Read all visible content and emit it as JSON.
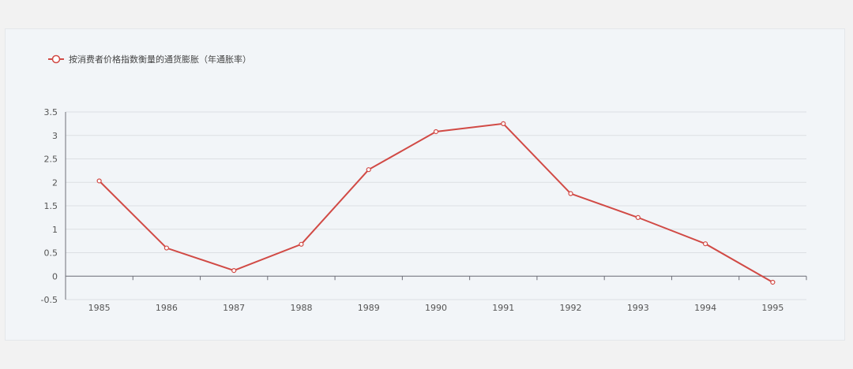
{
  "chart_data": {
    "type": "line",
    "legend": {
      "label": "按消费者价格指数衡量的通货膨胀（年通胀率）",
      "position": "top-left"
    },
    "categories": [
      "1985",
      "1986",
      "1987",
      "1988",
      "1989",
      "1990",
      "1991",
      "1992",
      "1993",
      "1994",
      "1995"
    ],
    "series": [
      {
        "name": "按消费者价格指数衡量的通货膨胀（年通胀率）",
        "values": [
          2.03,
          0.6,
          0.12,
          0.68,
          2.27,
          3.08,
          3.25,
          1.76,
          1.25,
          0.69,
          -0.13
        ],
        "color": "#d14a45"
      }
    ],
    "yticks": [
      "-0.5",
      "0",
      "0.5",
      "1",
      "1.5",
      "2",
      "2.5",
      "3",
      "3.5"
    ],
    "ylim": [
      -0.5,
      3.5
    ],
    "grid": true
  }
}
